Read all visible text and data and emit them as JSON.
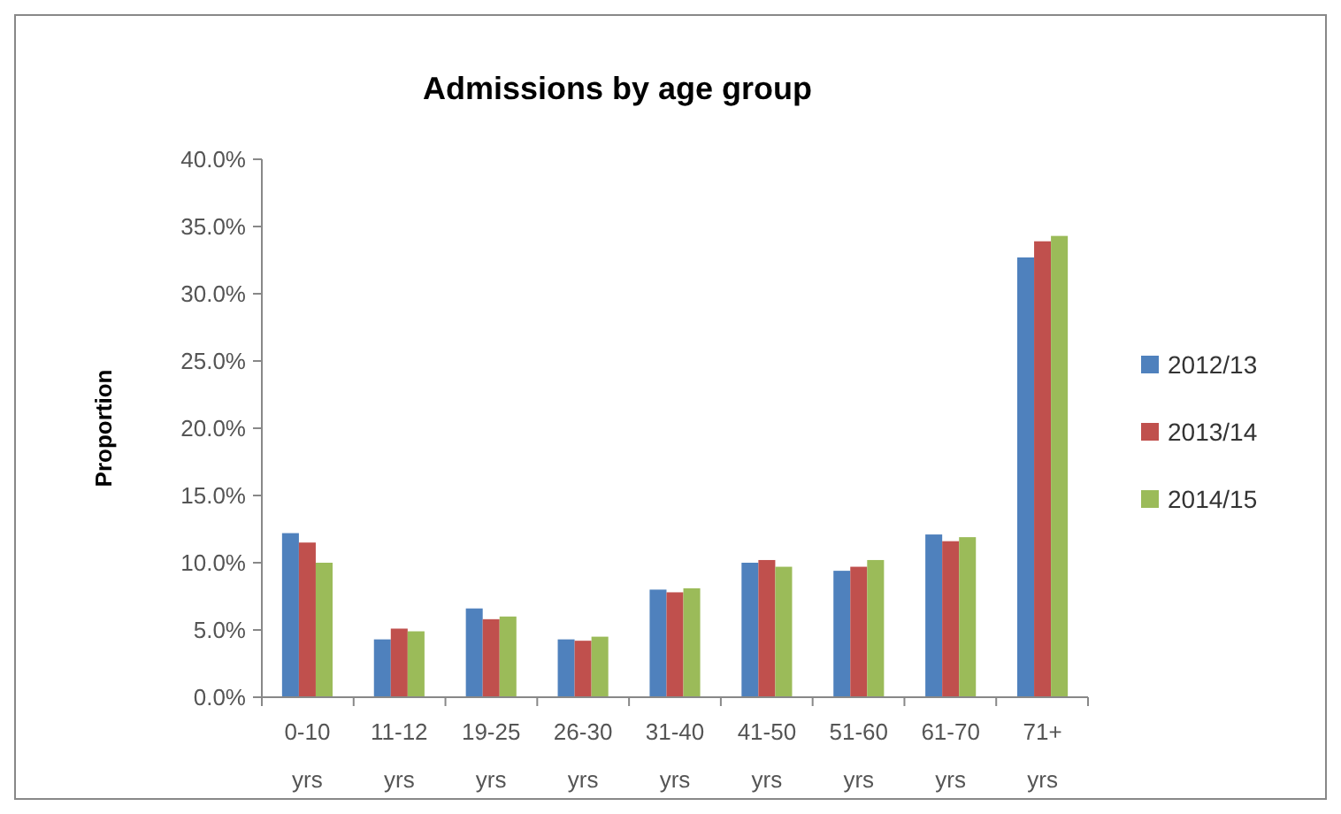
{
  "chart_data": {
    "type": "bar",
    "title": "Admissions by age group",
    "ylabel": "Proportion",
    "categories": [
      "0-10 yrs",
      "11-12 yrs",
      "19-25 yrs",
      "26-30 yrs",
      "31-40 yrs",
      "41-50 yrs",
      "51-60 yrs",
      "61-70 yrs",
      "71+ yrs"
    ],
    "series": [
      {
        "name": "2012/13",
        "color": "#4f81bd",
        "values": [
          12.2,
          4.3,
          6.6,
          4.3,
          8.0,
          10.0,
          9.4,
          12.1,
          32.7
        ]
      },
      {
        "name": "2013/14",
        "color": "#c0504d",
        "values": [
          11.5,
          5.1,
          5.8,
          4.2,
          7.8,
          10.2,
          9.7,
          11.6,
          33.9
        ]
      },
      {
        "name": "2014/15",
        "color": "#9bbb59",
        "values": [
          10.0,
          4.9,
          6.0,
          4.5,
          8.1,
          9.7,
          10.2,
          11.9,
          34.3
        ]
      }
    ],
    "ylim": [
      0,
      40
    ],
    "yticks": [
      {
        "value": 0,
        "label": "0.0%"
      },
      {
        "value": 5,
        "label": "5.0%"
      },
      {
        "value": 10,
        "label": "10.0%"
      },
      {
        "value": 15,
        "label": "15.0%"
      },
      {
        "value": 20,
        "label": "20.0%"
      },
      {
        "value": 25,
        "label": "25.0%"
      },
      {
        "value": 30,
        "label": "30.0%"
      },
      {
        "value": 35,
        "label": "35.0%"
      },
      {
        "value": 40,
        "label": "40.0%"
      }
    ],
    "grid": false,
    "legend": "right"
  }
}
